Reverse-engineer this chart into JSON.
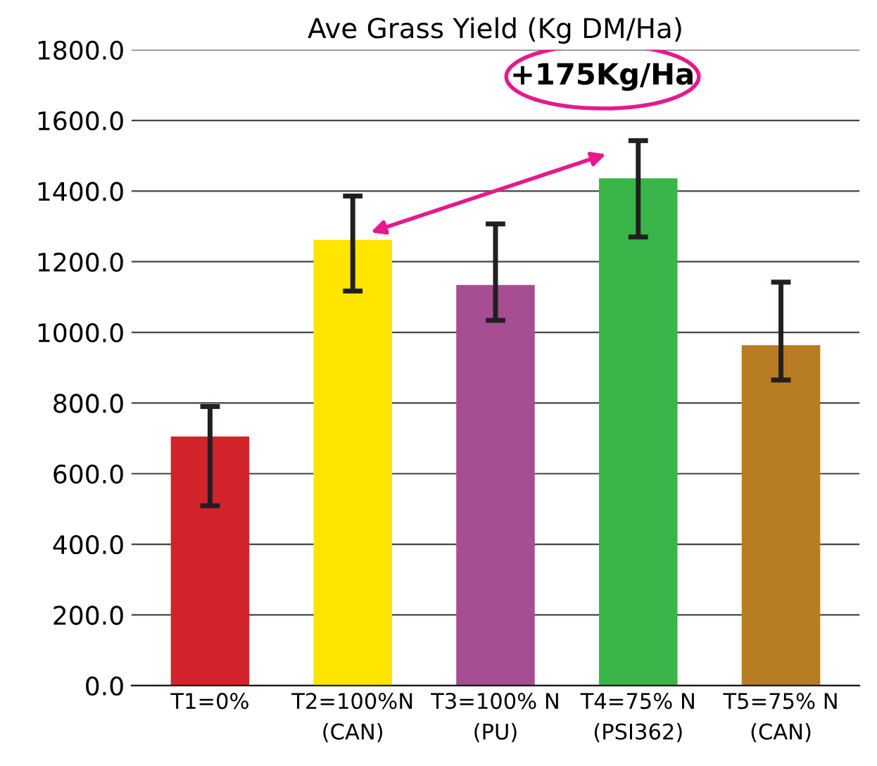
{
  "chart_data": {
    "type": "bar",
    "title": "Ave Grass Yield (Kg DM/Ha)",
    "categories": [
      "T1=0%",
      "T2=100%N\n(CAN)",
      "T3=100% N\n(PU)",
      "T4=75% N\n(PSI362)",
      "T5=75% N\n(CAN)"
    ],
    "values": [
      705,
      1262,
      1134,
      1436,
      964
    ],
    "colors": [
      "#d2232a",
      "#ffe500",
      "#a64d94",
      "#39b54a",
      "#b87c22"
    ],
    "errors": [
      [
        509,
        790
      ],
      [
        1117,
        1386
      ],
      [
        1034,
        1307
      ],
      [
        1270,
        1543
      ],
      [
        865,
        1142
      ]
    ],
    "ylim": [
      0,
      1800
    ],
    "yticks": [
      {
        "value": 0,
        "label": "0.0"
      },
      {
        "value": 200,
        "label": "200.0"
      },
      {
        "value": 400,
        "label": "400.0"
      },
      {
        "value": 600,
        "label": "600.0"
      },
      {
        "value": 800,
        "label": "800.0"
      },
      {
        "value": 1000,
        "label": "1000.0"
      },
      {
        "value": 1200,
        "label": "1200.0"
      },
      {
        "value": 1400,
        "label": "1400.0"
      },
      {
        "value": 1600,
        "label": "1600.0"
      },
      {
        "value": 1800,
        "label": "1800.0"
      }
    ],
    "grid": "y",
    "annotations": [
      "+175Kg/Ha"
    ]
  }
}
